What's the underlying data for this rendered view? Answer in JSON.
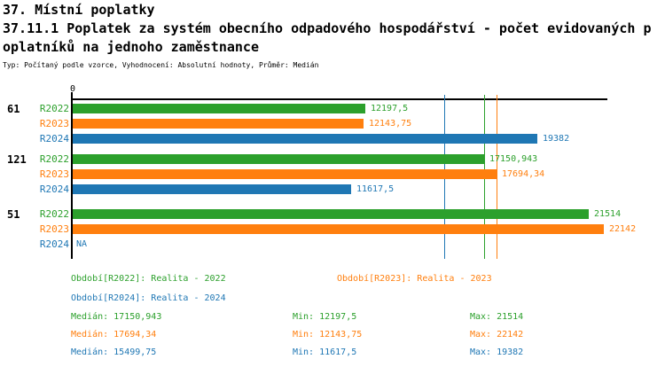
{
  "header": {
    "title_line1": "37. Místní poplatky",
    "title_line2": "37.11.1 Poplatek za systém obecního odpadového hospodářství - počet evidovaných p",
    "title_line3": "oplatníků na jednoho zaměstnance",
    "meta": "Typ: Počítaný podle vzorce, Vyhodnocení: Absolutní hodnoty, Průměr: Medián"
  },
  "colors": {
    "R2022": "#2ca02c",
    "R2023": "#ff7f0e",
    "R2024": "#1f77b4",
    "axis": "#000000"
  },
  "chart_data": {
    "type": "bar",
    "orientation": "horizontal",
    "value_axis": {
      "min": 0,
      "max": 22300,
      "origin_label": "0"
    },
    "series": [
      "R2022",
      "R2023",
      "R2024"
    ],
    "groups": [
      {
        "label": "61",
        "bars": [
          {
            "series": "R2022",
            "value": 12197.5,
            "display": "12197,5"
          },
          {
            "series": "R2023",
            "value": 12143.75,
            "display": "12143,75"
          },
          {
            "series": "R2024",
            "value": 19382,
            "display": "19382"
          }
        ]
      },
      {
        "label": "121",
        "bars": [
          {
            "series": "R2022",
            "value": 17150.943,
            "display": "17150,943"
          },
          {
            "series": "R2023",
            "value": 17694.34,
            "display": "17694,34"
          },
          {
            "series": "R2024",
            "value": 11617.5,
            "display": "11617,5"
          }
        ]
      },
      {
        "label": "51",
        "bars": [
          {
            "series": "R2022",
            "value": 21514,
            "display": "21514"
          },
          {
            "series": "R2023",
            "value": 22142,
            "display": "22142"
          },
          {
            "series": "R2024",
            "value": null,
            "display": "NA"
          }
        ]
      }
    ],
    "median_lines": [
      {
        "series": "R2022",
        "value": 17150.943
      },
      {
        "series": "R2023",
        "value": 17694.34
      },
      {
        "series": "R2024",
        "value": 15499.75
      }
    ]
  },
  "legend": {
    "items": [
      {
        "series": "R2022",
        "label": "Období[R2022]: Realita - 2022"
      },
      {
        "series": "R2023",
        "label": "Období[R2023]: Realita - 2023"
      },
      {
        "series": "R2024",
        "label": "Období[R2024]: Realita - 2024"
      }
    ]
  },
  "stats": {
    "rows": [
      {
        "series": "R2022",
        "median": "Medián: 17150,943",
        "min": "Min: 12197,5",
        "max": "Max: 21514"
      },
      {
        "series": "R2023",
        "median": "Medián: 17694,34",
        "min": "Min: 12143,75",
        "max": "Max: 22142"
      },
      {
        "series": "R2024",
        "median": "Medián: 15499,75",
        "min": "Min: 11617,5",
        "max": "Max: 19382"
      }
    ]
  }
}
